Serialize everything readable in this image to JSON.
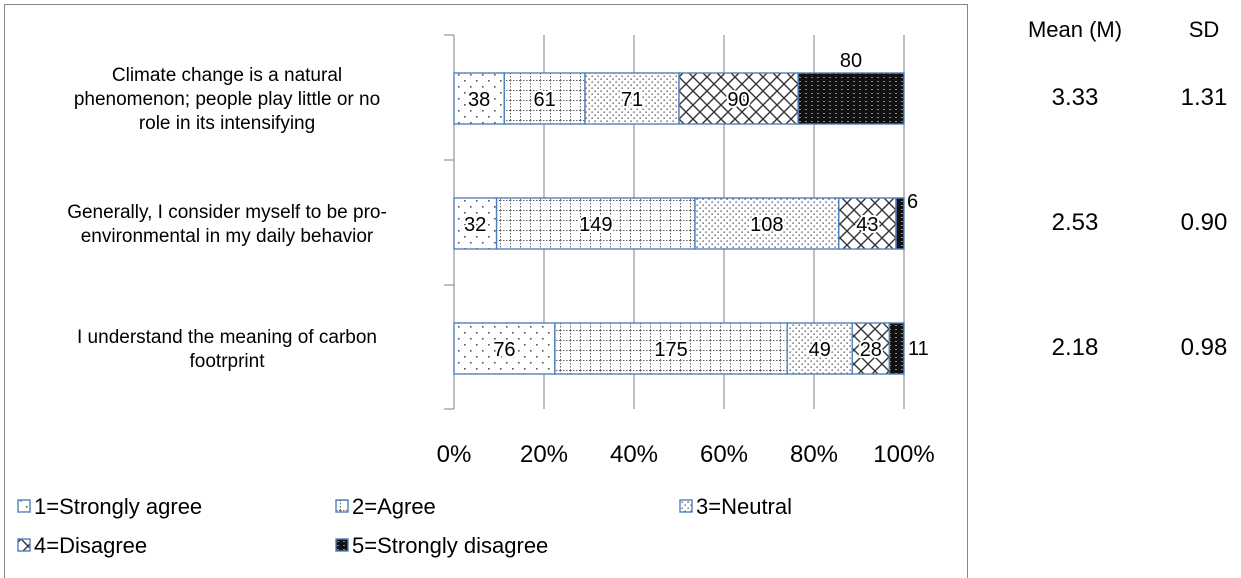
{
  "chart_data": {
    "type": "bar",
    "orientation": "horizontal",
    "stacked": "percent",
    "categories": [
      [
        "Climate change is a natural",
        "phenomenon; people play little or no",
        "role in its intensifying"
      ],
      [
        "Generally, I consider myself to be pro-",
        "environmental in my daily behavior"
      ],
      [
        "I understand the meaning of carbon",
        "footrprint"
      ]
    ],
    "series": [
      {
        "name": "1=Strongly agree",
        "values": [
          38,
          32,
          76
        ],
        "pattern": "dots-sparse"
      },
      {
        "name": "2=Agree",
        "values": [
          61,
          149,
          175
        ],
        "pattern": "dotted-grid"
      },
      {
        "name": "3=Neutral",
        "values": [
          71,
          108,
          49
        ],
        "pattern": "dots-dense"
      },
      {
        "name": "4=Disagree",
        "values": [
          90,
          43,
          28
        ],
        "pattern": "cross-hatch"
      },
      {
        "name": "5=Strongly disagree",
        "values": [
          80,
          6,
          11
        ],
        "pattern": "dark"
      }
    ],
    "x_ticks": [
      "0%",
      "20%",
      "40%",
      "60%",
      "80%",
      "100%"
    ],
    "xlim": [
      0,
      100
    ],
    "grid": true,
    "legend_position": "bottom",
    "bar_border_color": "#4f81bd",
    "stats": {
      "headers": [
        "Mean (M)",
        "SD"
      ],
      "rows": [
        [
          "3.33",
          "1.31"
        ],
        [
          "2.53",
          "0.90"
        ],
        [
          "2.18",
          "0.98"
        ]
      ]
    }
  }
}
